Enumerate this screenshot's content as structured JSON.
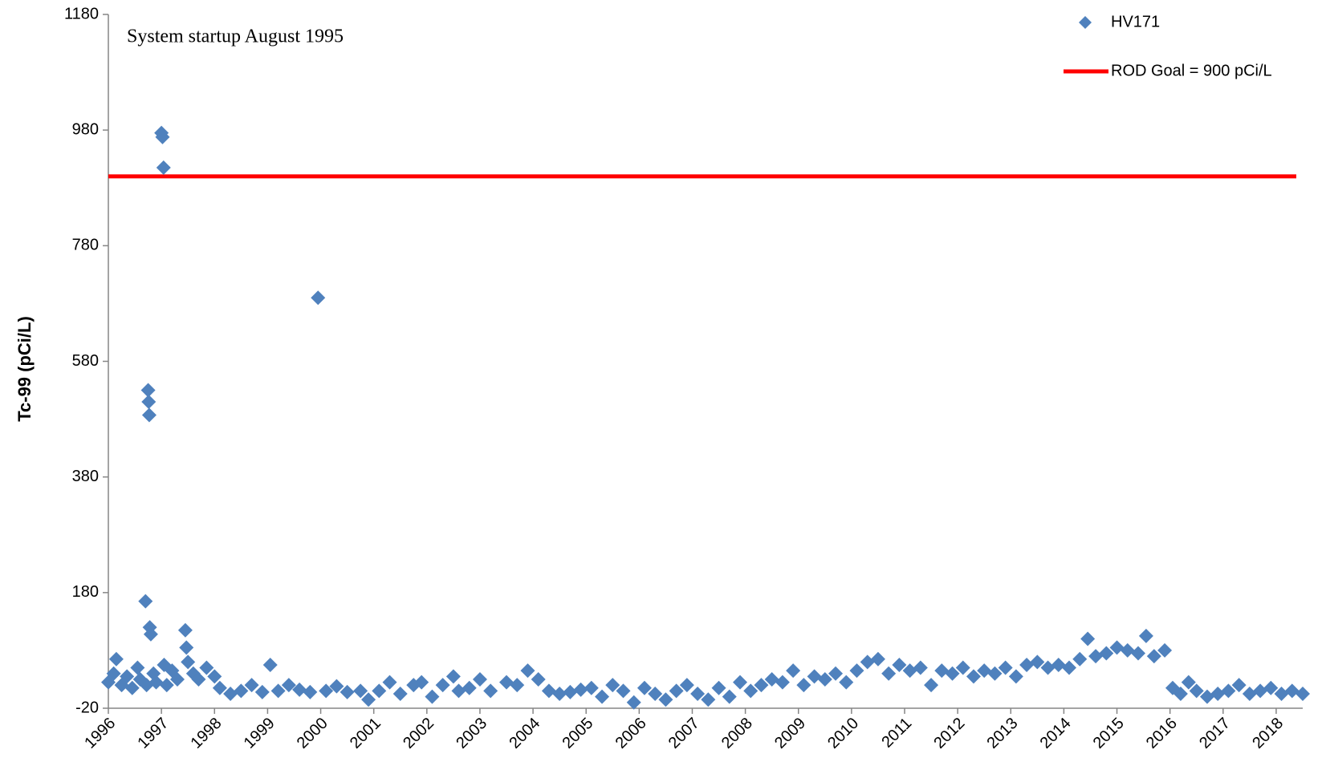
{
  "chart_data": {
    "type": "scatter",
    "y_label": "Tc-99 (pCi/L)",
    "annotation": "System startup August 1995",
    "xlim": [
      1996,
      2018.5
    ],
    "xticks": [
      1996,
      1997,
      1998,
      1999,
      2000,
      2001,
      2002,
      2003,
      2004,
      2005,
      2006,
      2007,
      2008,
      2009,
      2010,
      2011,
      2012,
      2013,
      2014,
      2015,
      2016,
      2017,
      2018
    ],
    "ylim": [
      -20,
      1180
    ],
    "yticks": [
      -20,
      180,
      380,
      580,
      780,
      980,
      1180
    ],
    "grid": false,
    "legend": "top-right",
    "series": [
      {
        "name": "HV171",
        "color": "#4f81bd",
        "x": [
          1996.0,
          1996.1,
          1996.15,
          1996.25,
          1996.35,
          1996.45,
          1996.55,
          1996.6,
          1996.7,
          1996.72,
          1996.75,
          1996.76,
          1996.77,
          1996.78,
          1996.8,
          1996.85,
          1996.9,
          1997.0,
          1997.02,
          1997.04,
          1997.05,
          1997.1,
          1997.2,
          1997.3,
          1997.45,
          1997.47,
          1997.5,
          1997.6,
          1997.7,
          1997.85,
          1998.0,
          1998.1,
          1998.3,
          1998.5,
          1998.7,
          1998.9,
          1999.05,
          1999.2,
          1999.4,
          1999.6,
          1999.8,
          1999.95,
          2000.1,
          2000.3,
          2000.5,
          2000.75,
          2000.9,
          2001.1,
          2001.3,
          2001.5,
          2001.75,
          2001.9,
          2002.1,
          2002.3,
          2002.5,
          2002.6,
          2002.8,
          2003.0,
          2003.2,
          2003.5,
          2003.7,
          2003.9,
          2004.1,
          2004.3,
          2004.5,
          2004.7,
          2004.9,
          2005.1,
          2005.3,
          2005.5,
          2005.7,
          2005.9,
          2006.1,
          2006.3,
          2006.5,
          2006.7,
          2006.9,
          2007.1,
          2007.3,
          2007.5,
          2007.7,
          2007.9,
          2008.1,
          2008.3,
          2008.5,
          2008.7,
          2008.9,
          2009.1,
          2009.3,
          2009.5,
          2009.7,
          2009.9,
          2010.1,
          2010.3,
          2010.5,
          2010.7,
          2010.9,
          2011.1,
          2011.3,
          2011.5,
          2011.7,
          2011.9,
          2012.1,
          2012.3,
          2012.5,
          2012.7,
          2012.9,
          2013.1,
          2013.3,
          2013.5,
          2013.7,
          2013.9,
          2014.1,
          2014.3,
          2014.45,
          2014.6,
          2014.8,
          2015.0,
          2015.2,
          2015.4,
          2015.55,
          2015.7,
          2015.9,
          2016.05,
          2016.2,
          2016.35,
          2016.5,
          2016.7,
          2016.9,
          2017.1,
          2017.3,
          2017.5,
          2017.7,
          2017.9,
          2018.1,
          2018.3,
          2018.5
        ],
        "values": [
          25,
          40,
          65,
          20,
          35,
          15,
          50,
          30,
          165,
          20,
          530,
          510,
          487,
          120,
          108,
          40,
          25,
          975,
          968,
          915,
          55,
          20,
          45,
          30,
          115,
          85,
          60,
          40,
          30,
          50,
          35,
          15,
          5,
          10,
          20,
          8,
          55,
          10,
          20,
          12,
          8,
          690,
          10,
          18,
          8,
          10,
          -5,
          10,
          25,
          5,
          20,
          25,
          0,
          20,
          35,
          10,
          15,
          30,
          10,
          25,
          20,
          45,
          30,
          10,
          5,
          8,
          12,
          15,
          0,
          20,
          10,
          -10,
          15,
          5,
          -5,
          10,
          20,
          5,
          -5,
          15,
          0,
          25,
          10,
          20,
          30,
          25,
          45,
          20,
          35,
          30,
          40,
          25,
          45,
          60,
          65,
          40,
          55,
          45,
          50,
          20,
          45,
          40,
          50,
          35,
          45,
          40,
          50,
          35,
          55,
          60,
          50,
          55,
          50,
          65,
          100,
          70,
          75,
          85,
          80,
          75,
          105,
          70,
          80,
          15,
          5,
          25,
          10,
          0,
          5,
          10,
          20,
          5,
          10,
          15,
          5,
          10,
          5
        ]
      }
    ],
    "hlines": [
      {
        "name": "ROD Goal = 900 pCi/L",
        "value": 900,
        "color": "#ff0000"
      }
    ]
  }
}
